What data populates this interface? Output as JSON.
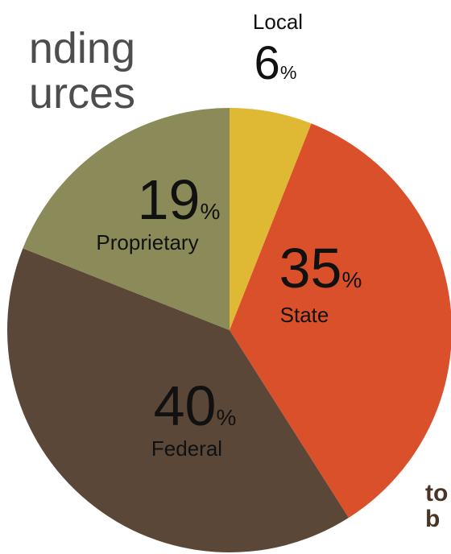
{
  "chart_data": {
    "type": "pie",
    "title_lines": [
      "nding",
      "urces"
    ],
    "categories": [
      "Local",
      "State",
      "Federal",
      "Proprietary"
    ],
    "values": [
      6,
      35,
      40,
      19
    ],
    "unit": "%",
    "colors": [
      "#e0b934",
      "#d9502b",
      "#5b4737",
      "#8b8b5a"
    ],
    "annotation_lines": [
      "to",
      "b"
    ]
  }
}
